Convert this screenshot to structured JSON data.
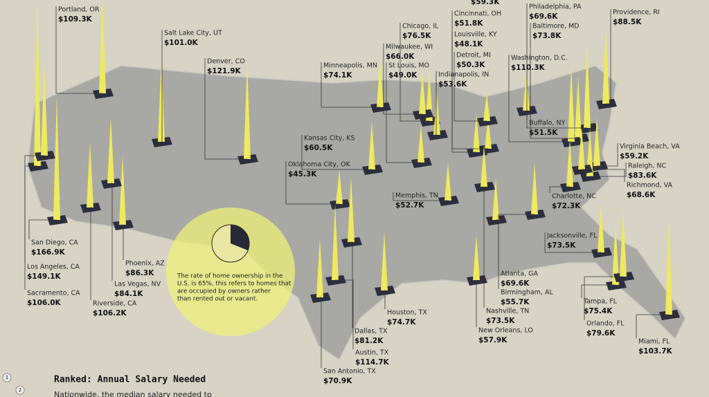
{
  "top_value": "$59.3K",
  "cities": [
    {
      "name": "Portland, OR",
      "salary": "$109.3K"
    },
    {
      "name": "Salt Lake City, UT",
      "salary": "$101.0K"
    },
    {
      "name": "Denver, CO",
      "salary": "$121.9K"
    },
    {
      "name": "Minneapolis, MN",
      "salary": "$74.1K"
    },
    {
      "name": "Chicago, IL",
      "salary": "$76.5K"
    },
    {
      "name": "Milwaukee, WI",
      "salary": "$66.0K"
    },
    {
      "name": "St Louis, MO",
      "salary": "$49.0K"
    },
    {
      "name": "Cincinnati, OH",
      "salary": "$51.8K"
    },
    {
      "name": "Louisville, KY",
      "salary": "$48.1K"
    },
    {
      "name": "Detroit, MI",
      "salary": "$50.3K"
    },
    {
      "name": "Indianapolis, IN",
      "salary": "$53.6K"
    },
    {
      "name": "Philadelphia, PA",
      "salary": "$69.6K"
    },
    {
      "name": "Baltimore, MD",
      "salary": "$73.8K"
    },
    {
      "name": "Washington, D.C.",
      "salary": "$110.3K"
    },
    {
      "name": "Providence, RI",
      "salary": "$88.5K"
    },
    {
      "name": "Buffalo, NY",
      "salary": "$51.5K"
    },
    {
      "name": "Virginia Beach, VA",
      "salary": "$59.2K"
    },
    {
      "name": "Raleigh, NC",
      "salary": "$83.6K"
    },
    {
      "name": "Richmond, VA",
      "salary": "$68.6K"
    },
    {
      "name": "Charlotte, NC",
      "salary": "$72.3K"
    },
    {
      "name": "Kansas City, KS",
      "salary": "$60.5K"
    },
    {
      "name": "Oklahoma City, OK",
      "salary": "$45.3K"
    },
    {
      "name": "Memphis, TN",
      "salary": "$52.7K"
    },
    {
      "name": "Jacksonville, FL",
      "salary": "$73.5K"
    },
    {
      "name": "San Diego, CA",
      "salary": "$166.9K"
    },
    {
      "name": "Los Angeles, CA",
      "salary": "$149.1K"
    },
    {
      "name": "Sacramento, CA",
      "salary": "$106.0K"
    },
    {
      "name": "Phoenix, AZ",
      "salary": "$86.3K"
    },
    {
      "name": "Las Vegas, NV",
      "salary": "$84.1K"
    },
    {
      "name": "Riverside, CA",
      "salary": "$106.2K"
    },
    {
      "name": "Atlanta, GA",
      "salary": "$69.6K"
    },
    {
      "name": "Birmingham, AL",
      "salary": "$55.7K"
    },
    {
      "name": "Nashville, TN",
      "salary": "$73.5K"
    },
    {
      "name": "New Orleans, LO",
      "salary": "$57.9K"
    },
    {
      "name": "Houston, TX",
      "salary": "$74.7K"
    },
    {
      "name": "Dallas, TX",
      "salary": "$81.2K"
    },
    {
      "name": "Austin, TX",
      "salary": "$114.7K"
    },
    {
      "name": "San Antonio, TX",
      "salary": "$70.9K"
    },
    {
      "name": "Tampa, FL",
      "salary": "$75.4K"
    },
    {
      "name": "Orlando, FL",
      "salary": "$79.6K"
    },
    {
      "name": "Miami, FL",
      "salary": "$103.7K"
    }
  ],
  "annotation": [
    "The rate of home ownership in the",
    "U.S. is 65%, this refers to homes that",
    "are occupied by owners rather",
    "than rented out or vacant."
  ],
  "footer": {
    "title": "Ranked: Annual Salary Needed",
    "subtitle": "Nationwide, the median salary needed to",
    "page_numbers": [
      "1",
      "2"
    ]
  }
}
